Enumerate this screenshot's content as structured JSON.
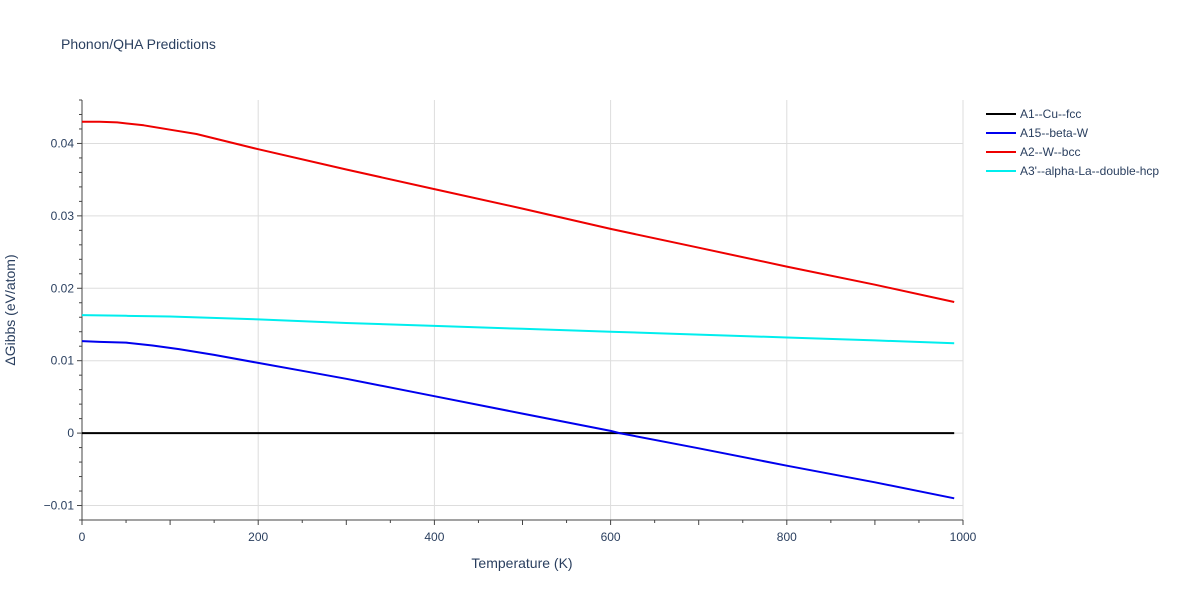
{
  "chart_data": {
    "type": "line",
    "title": "Phonon/QHA Predictions",
    "xlabel": "Temperature (K)",
    "ylabel": "ΔGibbs (eV/atom)",
    "xlim": [
      0,
      1000
    ],
    "ylim": [
      -0.012,
      0.046
    ],
    "x_ticks": [
      0,
      200,
      400,
      600,
      800,
      1000
    ],
    "x_tick_labels": [
      "0",
      "200",
      "400",
      "600",
      "800",
      "1000"
    ],
    "y_ticks": [
      -0.01,
      0,
      0.01,
      0.02,
      0.03,
      0.04
    ],
    "y_tick_labels": [
      "−0.01",
      "0",
      "0.01",
      "0.02",
      "0.03",
      "0.04"
    ],
    "grid": true,
    "legend_position": "top-right, outside plot",
    "series": [
      {
        "name": "A1--Cu--fcc",
        "color": "#000000",
        "x": [
          0,
          990
        ],
        "y": [
          0,
          0
        ]
      },
      {
        "name": "A15--beta-W",
        "color": "#0000ee",
        "x": [
          0,
          20,
          50,
          80,
          110,
          150,
          200,
          250,
          300,
          400,
          500,
          600,
          610,
          700,
          800,
          900,
          990
        ],
        "y": [
          0.0127,
          0.0126,
          0.0125,
          0.0121,
          0.0116,
          0.0108,
          0.0097,
          0.0086,
          0.0075,
          0.0051,
          0.0027,
          0.0003,
          0.0,
          -0.0021,
          -0.0045,
          -0.0068,
          -0.009
        ]
      },
      {
        "name": "A2--W--bcc",
        "color": "#ee0000",
        "x": [
          0,
          20,
          40,
          70,
          100,
          130,
          200,
          300,
          400,
          500,
          600,
          700,
          800,
          900,
          990
        ],
        "y": [
          0.043,
          0.043,
          0.0429,
          0.0425,
          0.0419,
          0.0413,
          0.0392,
          0.0364,
          0.0337,
          0.031,
          0.0282,
          0.0256,
          0.023,
          0.0205,
          0.0181
        ]
      },
      {
        "name": "A3'--alpha-La--double-hcp",
        "color": "#00eeee",
        "x": [
          0,
          50,
          100,
          200,
          300,
          400,
          500,
          600,
          700,
          800,
          900,
          990
        ],
        "y": [
          0.0163,
          0.0162,
          0.0161,
          0.0157,
          0.0152,
          0.0148,
          0.0144,
          0.014,
          0.0136,
          0.0132,
          0.0128,
          0.0124
        ]
      }
    ]
  }
}
